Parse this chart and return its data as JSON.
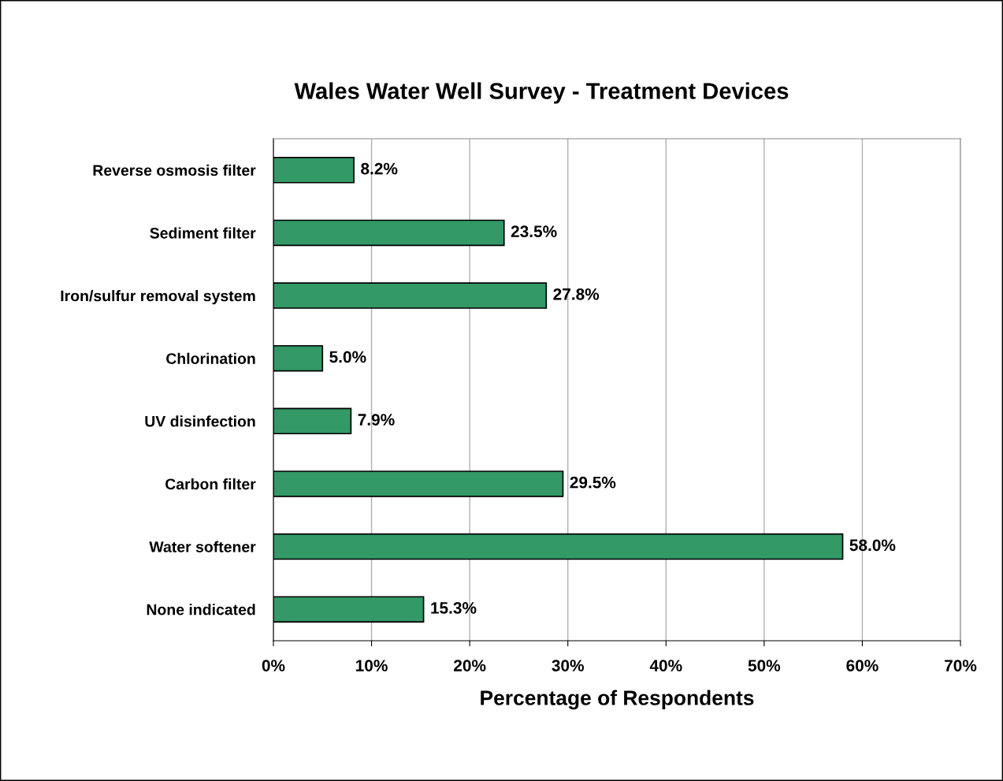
{
  "chart_data": {
    "type": "bar",
    "orientation": "horizontal",
    "title": "Wales Water Well Survey - Treatment Devices",
    "xlabel": "Percentage of Respondents",
    "categories": [
      "Reverse osmosis filter",
      "Sediment filter",
      "Iron/sulfur removal system",
      "Chlorination",
      "UV disinfection",
      "Carbon filter",
      "Water softener",
      "None indicated"
    ],
    "values": [
      8.2,
      23.5,
      27.8,
      5.0,
      7.9,
      29.5,
      58.0,
      15.3
    ],
    "value_labels": [
      "8.2%",
      "23.5%",
      "27.8%",
      "5.0%",
      "7.9%",
      "29.5%",
      "58.0%",
      "15.3%"
    ],
    "color": "#339966",
    "xlim": [
      0,
      70
    ],
    "xticks": [
      {
        "value": 0,
        "label": "0%"
      },
      {
        "value": 10,
        "label": "10%"
      },
      {
        "value": 20,
        "label": "20%"
      },
      {
        "value": 30,
        "label": "30%"
      },
      {
        "value": 40,
        "label": "40%"
      },
      {
        "value": 50,
        "label": "50%"
      },
      {
        "value": 60,
        "label": "60%"
      },
      {
        "value": 70,
        "label": "70%"
      }
    ],
    "grid": "x"
  }
}
